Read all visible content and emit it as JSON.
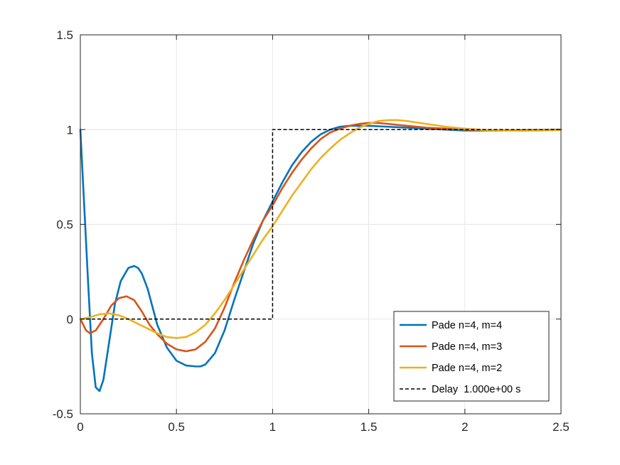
{
  "chart_data": {
    "type": "line",
    "title": "",
    "xlabel": "",
    "ylabel": "",
    "xlim": [
      0,
      2.5
    ],
    "ylim": [
      -0.5,
      1.5
    ],
    "grid": true,
    "legend_location": "bottom-right",
    "xticks": [
      "0",
      "0.5",
      "1",
      "1.5",
      "2",
      "2.5"
    ],
    "yticks": [
      "-0.5",
      "0",
      "0.5",
      "1",
      "1.5"
    ],
    "series": [
      {
        "name": "Pade n=4, m=4",
        "color": "#0072BD",
        "style": "solid",
        "x": [
          0,
          0.02,
          0.04,
          0.06,
          0.08,
          0.1,
          0.12,
          0.15,
          0.18,
          0.21,
          0.25,
          0.28,
          0.3,
          0.32,
          0.35,
          0.4,
          0.45,
          0.5,
          0.55,
          0.6,
          0.625,
          0.65,
          0.7,
          0.75,
          0.8,
          0.85,
          0.9,
          0.95,
          1.0,
          1.05,
          1.1,
          1.15,
          1.2,
          1.25,
          1.3,
          1.35,
          1.4,
          1.45,
          1.5,
          1.6,
          1.7,
          1.8,
          1.9,
          2.0,
          2.1,
          2.2,
          2.3,
          2.4,
          2.5
        ],
        "y": [
          1.0,
          0.6,
          0.2,
          -0.18,
          -0.36,
          -0.38,
          -0.32,
          -0.12,
          0.08,
          0.2,
          0.27,
          0.28,
          0.27,
          0.24,
          0.16,
          -0.03,
          -0.15,
          -0.22,
          -0.245,
          -0.25,
          -0.25,
          -0.24,
          -0.18,
          -0.06,
          0.1,
          0.25,
          0.4,
          0.52,
          0.62,
          0.72,
          0.81,
          0.88,
          0.935,
          0.975,
          1.0,
          1.015,
          1.02,
          1.02,
          1.02,
          1.015,
          1.01,
          1.005,
          1.0,
          0.995,
          0.995,
          0.995,
          0.997,
          0.998,
          1.0
        ]
      },
      {
        "name": "Pade n=4, m=3",
        "color": "#D95319",
        "style": "solid",
        "x": [
          0,
          0.03,
          0.05,
          0.08,
          0.12,
          0.16,
          0.2,
          0.24,
          0.28,
          0.32,
          0.36,
          0.4,
          0.45,
          0.5,
          0.55,
          0.6,
          0.65,
          0.7,
          0.75,
          0.8,
          0.85,
          0.9,
          0.95,
          1.0,
          1.05,
          1.1,
          1.15,
          1.2,
          1.25,
          1.3,
          1.35,
          1.4,
          1.45,
          1.5,
          1.55,
          1.6,
          1.7,
          1.8,
          1.9,
          2.0,
          2.1,
          2.2,
          2.3,
          2.4,
          2.5
        ],
        "y": [
          0.0,
          -0.06,
          -0.075,
          -0.06,
          0.0,
          0.07,
          0.11,
          0.12,
          0.1,
          0.04,
          -0.03,
          -0.08,
          -0.13,
          -0.16,
          -0.17,
          -0.16,
          -0.12,
          -0.05,
          0.06,
          0.19,
          0.31,
          0.42,
          0.52,
          0.6,
          0.69,
          0.77,
          0.84,
          0.9,
          0.95,
          0.985,
          1.005,
          1.02,
          1.03,
          1.035,
          1.035,
          1.03,
          1.02,
          1.01,
          1.005,
          1.0,
          0.997,
          0.995,
          0.995,
          0.997,
          1.0
        ]
      },
      {
        "name": "Pade n=4, m=2",
        "color": "#EDB120",
        "style": "solid",
        "x": [
          0,
          0.05,
          0.1,
          0.15,
          0.2,
          0.25,
          0.3,
          0.35,
          0.4,
          0.45,
          0.5,
          0.55,
          0.6,
          0.65,
          0.7,
          0.75,
          0.8,
          0.85,
          0.9,
          0.95,
          1.0,
          1.05,
          1.1,
          1.15,
          1.2,
          1.25,
          1.3,
          1.35,
          1.4,
          1.45,
          1.5,
          1.55,
          1.6,
          1.65,
          1.7,
          1.8,
          1.9,
          2.0,
          2.1,
          2.2,
          2.3,
          2.4,
          2.5
        ],
        "y": [
          0.0,
          0.01,
          0.025,
          0.03,
          0.02,
          0.0,
          -0.025,
          -0.05,
          -0.075,
          -0.095,
          -0.1,
          -0.095,
          -0.07,
          -0.03,
          0.03,
          0.1,
          0.18,
          0.26,
          0.34,
          0.42,
          0.49,
          0.57,
          0.65,
          0.72,
          0.79,
          0.85,
          0.9,
          0.945,
          0.98,
          1.01,
          1.03,
          1.045,
          1.05,
          1.05,
          1.045,
          1.03,
          1.015,
          1.005,
          0.998,
          0.995,
          0.993,
          0.995,
          0.998
        ]
      },
      {
        "name": "Delay  1.000e+00 s",
        "color": "#000000",
        "style": "dashed",
        "x": [
          0,
          1.0,
          1.0,
          2.5
        ],
        "y": [
          0,
          0,
          1,
          1
        ]
      }
    ]
  }
}
